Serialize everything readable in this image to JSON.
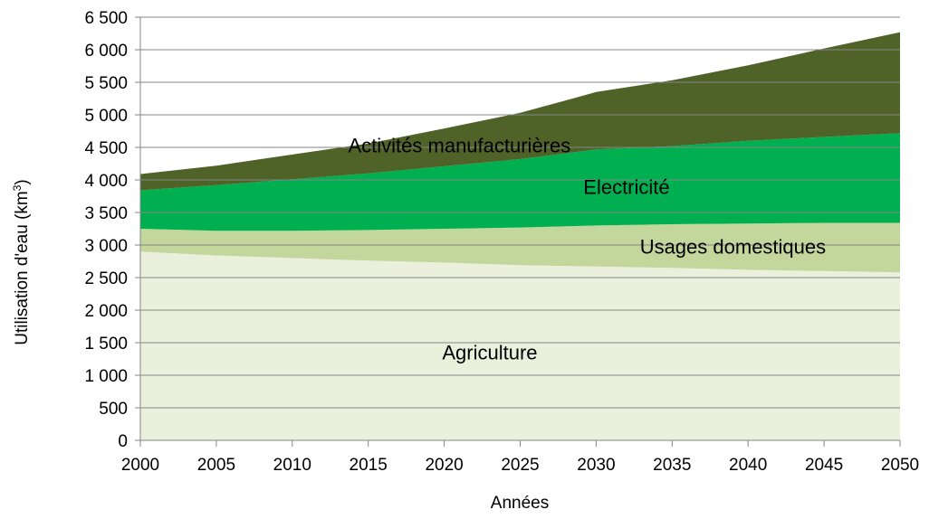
{
  "chart_data": {
    "type": "area",
    "stacked": true,
    "xlabel": "Années",
    "ylabel": "Utilisation d'eau (km3)",
    "ylabel_main": "Utilisation d'eau (km",
    "ylabel_sup": "3",
    "ylabel_end": ")",
    "x": [
      2000,
      2005,
      2010,
      2015,
      2020,
      2025,
      2030,
      2035,
      2040,
      2045,
      2050
    ],
    "x_tick_labels": [
      "2000",
      "2005",
      "2010",
      "2015",
      "2020",
      "2025",
      "2030",
      "2035",
      "2040",
      "2045",
      "2050"
    ],
    "ylim": [
      0,
      6500
    ],
    "y_tick_values": [
      0,
      500,
      1000,
      1500,
      2000,
      2500,
      3000,
      3500,
      4000,
      4500,
      5000,
      5500,
      6000,
      6500
    ],
    "y_tick_labels": [
      "0",
      "500",
      "1 000",
      "1 500",
      "2 000",
      "2 500",
      "3 000",
      "3 500",
      "4 000",
      "4 500",
      "5 000",
      "5 500",
      "6 000",
      "6 500"
    ],
    "grid": true,
    "legend": "none",
    "series": [
      {
        "name": "Agriculture",
        "color": "#ebf0dd",
        "values": [
          2900,
          2840,
          2800,
          2760,
          2730,
          2690,
          2670,
          2650,
          2620,
          2600,
          2580
        ]
      },
      {
        "name": "Usages domestiques",
        "color": "#c3d69b",
        "values": [
          350,
          380,
          420,
          470,
          520,
          580,
          630,
          670,
          710,
          740,
          760
        ]
      },
      {
        "name": "Electricité",
        "color": "#00b050",
        "values": [
          590,
          700,
          790,
          870,
          960,
          1050,
          1170,
          1200,
          1270,
          1320,
          1380
        ]
      },
      {
        "name": "Activités manufacturières",
        "color": "#4f6228",
        "values": [
          250,
          300,
          380,
          460,
          580,
          710,
          880,
          1010,
          1160,
          1360,
          1550
        ]
      }
    ]
  }
}
